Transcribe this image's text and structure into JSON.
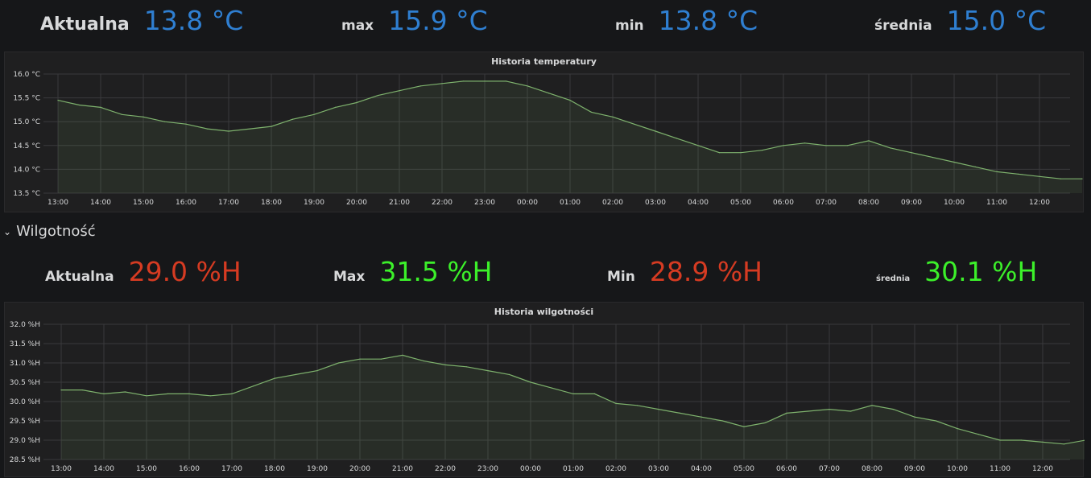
{
  "temperature": {
    "stats": {
      "current_label": "Aktualna",
      "current_value": "13.8 °C",
      "max_label": "max",
      "max_value": "15.9 °C",
      "min_label": "min",
      "min_value": "13.8 °C",
      "avg_label": "średnia",
      "avg_value": "15.0 °C"
    },
    "value_color": "#2f7fd1"
  },
  "humidity_row": {
    "title": "Wilgotność",
    "chevron": "chevron-down-icon"
  },
  "humidity": {
    "stats": {
      "current_label": "Aktualna",
      "current_value": "29.0 %H",
      "max_label": "Max",
      "max_value": "31.5 %H",
      "min_label": "Min",
      "min_value": "28.9 %H",
      "avg_label": "średnia",
      "avg_value": "30.1 %H"
    },
    "colors": {
      "current": "#d63b22",
      "max": "#3cf02a",
      "min": "#d63b22",
      "avg": "#3cf02a"
    }
  },
  "chart_data": [
    {
      "type": "area",
      "title": "Historia temperatury",
      "y_ticks": [
        "13.5 °C",
        "14.0 °C",
        "14.5 °C",
        "15.0 °C",
        "15.5 °C",
        "16.0 °C"
      ],
      "ylim": [
        13.5,
        16.0
      ],
      "x_ticks": [
        "13:00",
        "14:00",
        "15:00",
        "16:00",
        "17:00",
        "18:00",
        "19:00",
        "20:00",
        "21:00",
        "22:00",
        "23:00",
        "00:00",
        "01:00",
        "02:00",
        "03:00",
        "04:00",
        "05:00",
        "06:00",
        "07:00",
        "08:00",
        "09:00",
        "10:00",
        "11:00",
        "12:00"
      ],
      "grid": true,
      "line_color": "#7eb26d",
      "x_hours": [
        0,
        0.5,
        1,
        1.5,
        2,
        2.5,
        3,
        3.5,
        4,
        4.5,
        5,
        5.5,
        6,
        6.5,
        7,
        7.5,
        8,
        8.5,
        9,
        9.5,
        10,
        10.5,
        11,
        11.5,
        12,
        12.5,
        13,
        13.5,
        14,
        14.5,
        15,
        15.5,
        16,
        16.5,
        17,
        17.5,
        18,
        18.5,
        19,
        19.5,
        20,
        20.5,
        21,
        21.5,
        22,
        22.5,
        23,
        23.5,
        24
      ],
      "values": [
        15.45,
        15.35,
        15.3,
        15.15,
        15.1,
        15.0,
        14.95,
        14.85,
        14.8,
        14.85,
        14.9,
        15.05,
        15.15,
        15.3,
        15.4,
        15.55,
        15.65,
        15.75,
        15.8,
        15.85,
        15.85,
        15.85,
        15.75,
        15.6,
        15.45,
        15.2,
        15.1,
        14.95,
        14.8,
        14.65,
        14.5,
        14.35,
        14.35,
        14.4,
        14.5,
        14.55,
        14.5,
        14.5,
        14.6,
        14.45,
        14.35,
        14.25,
        14.15,
        14.05,
        13.95,
        13.9,
        13.85,
        13.8,
        13.8
      ]
    },
    {
      "type": "area",
      "title": "Historia wilgotności",
      "y_ticks": [
        "28.5 %H",
        "29.0 %H",
        "29.5 %H",
        "30.0 %H",
        "30.5 %H",
        "31.0 %H",
        "31.5 %H",
        "32.0 %H"
      ],
      "ylim": [
        28.5,
        32.0
      ],
      "x_ticks": [
        "13:00",
        "14:00",
        "15:00",
        "16:00",
        "17:00",
        "18:00",
        "19:00",
        "20:00",
        "21:00",
        "22:00",
        "23:00",
        "00:00",
        "01:00",
        "02:00",
        "03:00",
        "04:00",
        "05:00",
        "06:00",
        "07:00",
        "08:00",
        "09:00",
        "10:00",
        "11:00",
        "12:00"
      ],
      "grid": true,
      "line_color": "#7eb26d",
      "x_hours": [
        0,
        0.5,
        1,
        1.5,
        2,
        2.5,
        3,
        3.5,
        4,
        4.5,
        5,
        5.5,
        6,
        6.5,
        7,
        7.5,
        8,
        8.5,
        9,
        9.5,
        10,
        10.5,
        11,
        11.5,
        12,
        12.5,
        13,
        13.5,
        14,
        14.5,
        15,
        15.5,
        16,
        16.5,
        17,
        17.5,
        18,
        18.5,
        19,
        19.5,
        20,
        20.5,
        21,
        21.5,
        22,
        22.5,
        23,
        23.5,
        24
      ],
      "values": [
        30.3,
        30.3,
        30.2,
        30.25,
        30.15,
        30.2,
        30.2,
        30.15,
        30.2,
        30.4,
        30.6,
        30.7,
        30.8,
        31.0,
        31.1,
        31.1,
        31.2,
        31.05,
        30.95,
        30.9,
        30.8,
        30.7,
        30.5,
        30.35,
        30.2,
        30.2,
        29.95,
        29.9,
        29.8,
        29.7,
        29.6,
        29.5,
        29.35,
        29.45,
        29.7,
        29.75,
        29.8,
        29.75,
        29.9,
        29.8,
        29.6,
        29.5,
        29.3,
        29.15,
        29.0,
        29.0,
        28.95,
        28.9,
        29.0
      ]
    }
  ]
}
